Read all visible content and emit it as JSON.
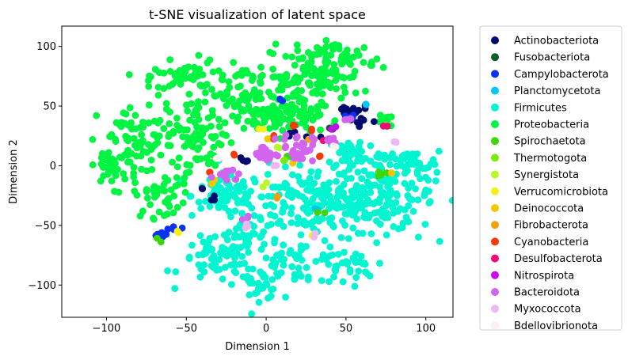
{
  "chart_data": {
    "type": "scatter",
    "title": "t-SNE visualization of latent space",
    "xlabel": "Dimension 1",
    "ylabel": "Dimension 2",
    "xlim": [
      -128,
      117
    ],
    "ylim": [
      -127,
      117
    ],
    "xticks": [
      -100,
      -50,
      0,
      50,
      100
    ],
    "yticks": [
      100,
      50,
      0,
      -50,
      -100
    ],
    "xtick_labels": [
      "−100",
      "−50",
      "0",
      "50",
      "100"
    ],
    "ytick_labels": [
      "100",
      "50",
      "0",
      "−50",
      "−100"
    ],
    "grid": false,
    "legend_position": "outside right",
    "series": [
      {
        "name": "Actinobacteriota",
        "color": "#000b6e",
        "clusters": [
          {
            "cx": 52,
            "cy": 45,
            "rx": 10,
            "ry": 5,
            "n": 14
          },
          {
            "cx": 60,
            "cy": 38,
            "rx": 8,
            "ry": 4,
            "n": 8
          },
          {
            "cx": 20,
            "cy": 25,
            "rx": 8,
            "ry": 4,
            "n": 6
          },
          {
            "cx": -15,
            "cy": 5,
            "rx": 6,
            "ry": 3,
            "n": 4
          },
          {
            "cx": -33,
            "cy": -30,
            "rx": 3,
            "ry": 3,
            "n": 3
          },
          {
            "cx": -40,
            "cy": -20,
            "rx": 2,
            "ry": 2,
            "n": 2
          }
        ]
      },
      {
        "name": "Fusobacteriota",
        "color": "#0d5c2e",
        "clusters": [
          {
            "cx": 40,
            "cy": 30,
            "rx": 2,
            "ry": 2,
            "n": 2
          }
        ]
      },
      {
        "name": "Campylobacterota",
        "color": "#0a32f0",
        "clusters": [
          {
            "cx": -65,
            "cy": -58,
            "rx": 5,
            "ry": 3,
            "n": 10
          },
          {
            "cx": -58,
            "cy": -52,
            "rx": 4,
            "ry": 2,
            "n": 5
          },
          {
            "cx": 10,
            "cy": 55,
            "rx": 2,
            "ry": 2,
            "n": 2
          },
          {
            "cx": 55,
            "cy": 42,
            "rx": 4,
            "ry": 3,
            "n": 4
          }
        ]
      },
      {
        "name": "Planctomycetota",
        "color": "#00c8f0",
        "clusters": [
          {
            "cx": 62,
            "cy": 51,
            "rx": 2,
            "ry": 2,
            "n": 2
          },
          {
            "cx": 30,
            "cy": -37,
            "rx": 2,
            "ry": 2,
            "n": 2
          }
        ]
      },
      {
        "name": "Firmicutes",
        "color": "#00f5d0",
        "clusters": [
          {
            "cx": 30,
            "cy": -30,
            "rx": 40,
            "ry": 25,
            "n": 200
          },
          {
            "cx": 75,
            "cy": -25,
            "rx": 25,
            "ry": 25,
            "n": 120
          },
          {
            "cx": -25,
            "cy": -25,
            "rx": 18,
            "ry": 15,
            "n": 70
          },
          {
            "cx": -30,
            "cy": -80,
            "rx": 20,
            "ry": 15,
            "n": 60
          },
          {
            "cx": 20,
            "cy": -80,
            "rx": 25,
            "ry": 15,
            "n": 60
          },
          {
            "cx": -5,
            "cy": -100,
            "rx": 12,
            "ry": 10,
            "n": 30
          },
          {
            "cx": 50,
            "cy": -85,
            "rx": 15,
            "ry": 12,
            "n": 30
          },
          {
            "cx": 90,
            "cy": 0,
            "rx": 15,
            "ry": 10,
            "n": 40
          },
          {
            "cx": 55,
            "cy": 10,
            "rx": 15,
            "ry": 12,
            "n": 50
          },
          {
            "cx": -15,
            "cy": -60,
            "rx": 15,
            "ry": 10,
            "n": 30
          }
        ]
      },
      {
        "name": "Proteobacteria",
        "color": "#00f542",
        "clusters": [
          {
            "cx": -15,
            "cy": 60,
            "rx": 45,
            "ry": 25,
            "n": 160
          },
          {
            "cx": -75,
            "cy": 20,
            "rx": 25,
            "ry": 25,
            "n": 80
          },
          {
            "cx": -65,
            "cy": -25,
            "rx": 15,
            "ry": 15,
            "n": 40
          },
          {
            "cx": 30,
            "cy": 75,
            "rx": 25,
            "ry": 20,
            "n": 90
          },
          {
            "cx": 50,
            "cy": 90,
            "rx": 15,
            "ry": 12,
            "n": 40
          },
          {
            "cx": -40,
            "cy": 20,
            "rx": 15,
            "ry": 20,
            "n": 60
          },
          {
            "cx": 10,
            "cy": 40,
            "rx": 20,
            "ry": 12,
            "n": 60
          },
          {
            "cx": -95,
            "cy": 0,
            "rx": 12,
            "ry": 15,
            "n": 40
          },
          {
            "cx": 75,
            "cy": 38,
            "rx": 5,
            "ry": 3,
            "n": 10
          },
          {
            "cx": -50,
            "cy": 75,
            "rx": 15,
            "ry": 10,
            "n": 30
          }
        ]
      },
      {
        "name": "Spirochaetota",
        "color": "#3cd60a",
        "clusters": [
          {
            "cx": 72,
            "cy": -7,
            "rx": 3,
            "ry": 2,
            "n": 4
          },
          {
            "cx": -67,
            "cy": -63,
            "rx": 2,
            "ry": 2,
            "n": 2
          },
          {
            "cx": 35,
            "cy": -38,
            "rx": 2,
            "ry": 2,
            "n": 2
          },
          {
            "cx": 15,
            "cy": 5,
            "rx": 2,
            "ry": 2,
            "n": 2
          }
        ]
      },
      {
        "name": "Thermotogota",
        "color": "#7aea0c",
        "clusters": [
          {
            "cx": 75,
            "cy": 33,
            "rx": 2,
            "ry": 2,
            "n": 2
          },
          {
            "cx": 10,
            "cy": 5,
            "rx": 2,
            "ry": 2,
            "n": 2
          }
        ]
      },
      {
        "name": "Synergistota",
        "color": "#b8f52a",
        "clusters": [
          {
            "cx": 8,
            "cy": 15,
            "rx": 2,
            "ry": 2,
            "n": 2
          },
          {
            "cx": -2,
            "cy": -15,
            "rx": 2,
            "ry": 2,
            "n": 2
          }
        ]
      },
      {
        "name": "Verrucomicrobiota",
        "color": "#f6f018",
        "clusters": [
          {
            "cx": -3,
            "cy": 30,
            "rx": 2,
            "ry": 2,
            "n": 2
          },
          {
            "cx": -55,
            "cy": -58,
            "rx": 2,
            "ry": 2,
            "n": 2
          },
          {
            "cx": 30,
            "cy": -57,
            "rx": 2,
            "ry": 2,
            "n": 2
          }
        ]
      },
      {
        "name": "Deinococcota",
        "color": "#f0c800",
        "clusters": [
          {
            "cx": 2,
            "cy": 25,
            "rx": 2,
            "ry": 2,
            "n": 2
          },
          {
            "cx": -35,
            "cy": -13,
            "rx": 2,
            "ry": 2,
            "n": 2
          },
          {
            "cx": 17,
            "cy": 3,
            "rx": 2,
            "ry": 2,
            "n": 2
          },
          {
            "cx": 77,
            "cy": -7,
            "rx": 2,
            "ry": 2,
            "n": 2
          }
        ]
      },
      {
        "name": "Fibrobacterota",
        "color": "#f0a010",
        "clusters": [
          {
            "cx": 8,
            "cy": -27,
            "rx": 2,
            "ry": 2,
            "n": 2
          },
          {
            "cx": 28,
            "cy": 20,
            "rx": 2,
            "ry": 2,
            "n": 2
          }
        ]
      },
      {
        "name": "Cyanobacteria",
        "color": "#f03c0a",
        "clusters": [
          {
            "cx": 17,
            "cy": 34,
            "rx": 2,
            "ry": 2,
            "n": 3
          },
          {
            "cx": -35,
            "cy": -4,
            "rx": 2,
            "ry": 2,
            "n": 2
          },
          {
            "cx": 35,
            "cy": 8,
            "rx": 2,
            "ry": 2,
            "n": 2
          },
          {
            "cx": -20,
            "cy": 10,
            "rx": 2,
            "ry": 2,
            "n": 2
          },
          {
            "cx": 5,
            "cy": 24,
            "rx": 2,
            "ry": 2,
            "n": 2
          },
          {
            "cx": 28,
            "cy": 29,
            "rx": 2,
            "ry": 2,
            "n": 2
          }
        ]
      },
      {
        "name": "Desulfobacterota",
        "color": "#f00a78",
        "clusters": [
          {
            "cx": 37,
            "cy": 22,
            "rx": 2,
            "ry": 2,
            "n": 2
          },
          {
            "cx": 75,
            "cy": 35,
            "rx": 2,
            "ry": 2,
            "n": 2
          }
        ]
      },
      {
        "name": "Nitrospirota",
        "color": "#c80af0",
        "clusters": [
          {
            "cx": 44,
            "cy": 32,
            "rx": 2,
            "ry": 2,
            "n": 2
          }
        ]
      },
      {
        "name": "Bacteroidota",
        "color": "#d264f0",
        "clusters": [
          {
            "cx": 20,
            "cy": 15,
            "rx": 8,
            "ry": 10,
            "n": 30
          },
          {
            "cx": 0,
            "cy": 10,
            "rx": 8,
            "ry": 6,
            "n": 20
          },
          {
            "cx": -25,
            "cy": -5,
            "rx": 6,
            "ry": 5,
            "n": 12
          },
          {
            "cx": 40,
            "cy": 20,
            "rx": 4,
            "ry": 4,
            "n": 8
          },
          {
            "cx": 48,
            "cy": 38,
            "rx": 4,
            "ry": 2,
            "n": 6
          },
          {
            "cx": -12,
            "cy": -45,
            "rx": 2,
            "ry": 3,
            "n": 3
          }
        ]
      },
      {
        "name": "Myxococcota",
        "color": "#eeb6f2",
        "clusters": [
          {
            "cx": -12,
            "cy": -50,
            "rx": 2,
            "ry": 2,
            "n": 3
          },
          {
            "cx": 30,
            "cy": -58,
            "rx": 2,
            "ry": 2,
            "n": 2
          },
          {
            "cx": 78,
            "cy": 20,
            "rx": 2,
            "ry": 2,
            "n": 2
          },
          {
            "cx": 5,
            "cy": 0,
            "rx": 3,
            "ry": 3,
            "n": 3
          }
        ]
      },
      {
        "name": "Bdellovibrionota",
        "color": "#fcf0f0",
        "clusters": [
          {
            "cx": -30,
            "cy": 6,
            "rx": 2,
            "ry": 2,
            "n": 2
          },
          {
            "cx": 43,
            "cy": 17,
            "rx": 2,
            "ry": 2,
            "n": 2
          }
        ]
      }
    ]
  }
}
